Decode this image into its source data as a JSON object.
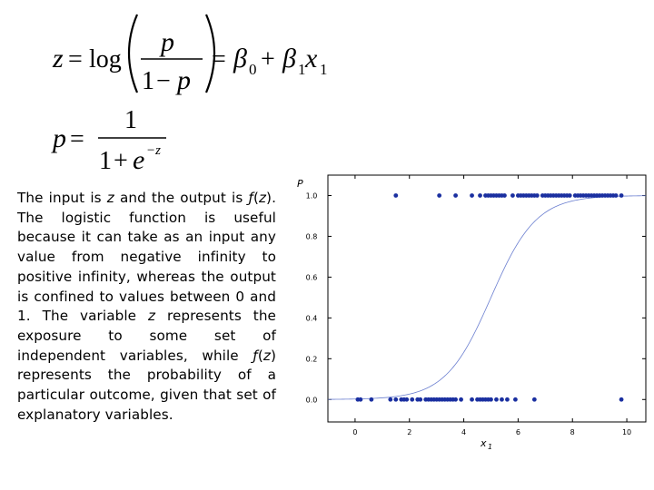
{
  "equations": {
    "logit": {
      "lhs": "z",
      "eq1": "=",
      "func": "log",
      "num": "p",
      "den_one": "1",
      "den_minus": "−",
      "den_p": "p",
      "eq2": "=",
      "beta": "β",
      "sub0": "0",
      "plus": "+",
      "sub1": "1",
      "x": "x",
      "xsub": "1"
    },
    "logistic": {
      "lhs": "p",
      "eq": "=",
      "num": "1",
      "den_one": "1",
      "den_plus": "+",
      "den_e": "e",
      "exp": "−z"
    }
  },
  "paragraph": {
    "t1": "The input is ",
    "z1": "z",
    "t2": " and the output is ",
    "f1": "ƒ",
    "t3": "(",
    "z2": "z",
    "t4": "). The logistic function is useful because it can take as an input any value from negative infinity to positive infinity, whereas the output is confined to values between 0 and 1. The variable ",
    "z3": "z",
    "t5": " represents the exposure to some set of independent variables, while ",
    "f2": "ƒ",
    "t6": "(",
    "z4": "z",
    "t7": ") represents the probability of a particular outcome, given that set of explanatory variables."
  },
  "chart_data": {
    "type": "scatter",
    "ylabel": "P",
    "xlabel": "x",
    "xlabel_sub": "1",
    "xlim": [
      -1,
      10.7
    ],
    "ylim": [
      -0.11,
      1.1
    ],
    "xticks": [
      0,
      2,
      4,
      6,
      8,
      10
    ],
    "yticks": [
      0.0,
      0.2,
      0.4,
      0.6,
      0.8,
      1.0
    ],
    "ytick_labels": [
      "0.0",
      "0.2",
      "0.4",
      "0.6",
      "0.8",
      "1.0"
    ],
    "curve": {
      "function": "logistic",
      "beta0": -6.0,
      "beta1": 1.2
    },
    "points_y1": [
      1.5,
      3.1,
      3.7,
      4.3,
      4.6,
      4.8,
      4.9,
      5.0,
      5.1,
      5.2,
      5.3,
      5.4,
      5.5,
      5.8,
      6.0,
      6.1,
      6.2,
      6.3,
      6.4,
      6.5,
      6.6,
      6.7,
      6.9,
      7.0,
      7.1,
      7.2,
      7.3,
      7.4,
      7.5,
      7.6,
      7.7,
      7.8,
      7.9,
      8.1,
      8.2,
      8.3,
      8.4,
      8.5,
      8.6,
      8.7,
      8.8,
      8.9,
      9.0,
      9.1,
      9.2,
      9.3,
      9.4,
      9.5,
      9.6,
      9.8
    ],
    "points_y0": [
      0.1,
      0.2,
      0.6,
      1.3,
      1.5,
      1.7,
      1.8,
      1.9,
      2.1,
      2.3,
      2.4,
      2.6,
      2.7,
      2.8,
      2.9,
      3.0,
      3.1,
      3.2,
      3.3,
      3.4,
      3.5,
      3.6,
      3.7,
      3.9,
      4.3,
      4.5,
      4.6,
      4.7,
      4.8,
      4.9,
      5.0,
      5.2,
      5.4,
      5.6,
      5.9,
      6.6,
      9.8
    ],
    "colors": {
      "points": "#1a2fa0",
      "curve": "#6b7fd0",
      "axes": "#000000"
    }
  }
}
